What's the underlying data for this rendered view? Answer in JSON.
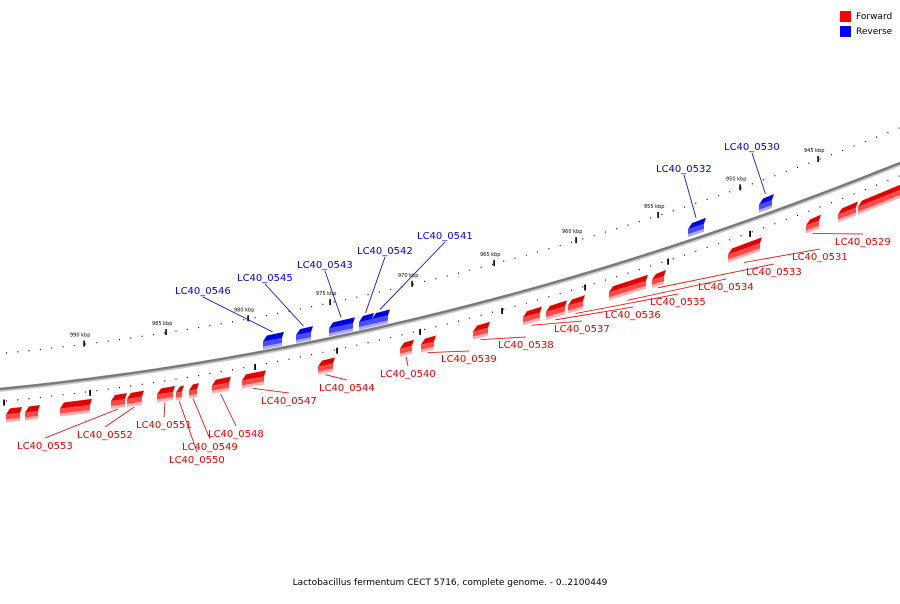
{
  "legend": {
    "forward": {
      "label": "Forward",
      "color": "#ff0000"
    },
    "reverse": {
      "label": "Reverse",
      "color": "#0000ff"
    }
  },
  "caption": "Lactobacillus fermentum CECT 5716, complete genome. - 0..2100449",
  "colors": {
    "forward": "#e00000",
    "forward_light": "#ff4a4a",
    "forward_shadow": "#ffb0b0",
    "reverse": "#0000e0",
    "reverse_light": "#4a4aff",
    "reverse_shadow": "#a8a8ff",
    "backbone": "#7a7a7a",
    "tick": "#000000"
  },
  "scale_labels": [
    "945 kbp",
    "950 kbp",
    "955 kbp",
    "960 kbp",
    "965 kbp",
    "970 kbp",
    "975 kbp",
    "980 kbp",
    "985 kbp",
    "990 kbp"
  ],
  "genes": [
    {
      "label": "LC40_0529",
      "strand": "forward"
    },
    {
      "label": "LC40_0530",
      "strand": "reverse"
    },
    {
      "label": "LC40_0531",
      "strand": "forward"
    },
    {
      "label": "LC40_0532",
      "strand": "reverse"
    },
    {
      "label": "LC40_0533",
      "strand": "forward"
    },
    {
      "label": "LC40_0534",
      "strand": "forward"
    },
    {
      "label": "LC40_0535",
      "strand": "forward"
    },
    {
      "label": "LC40_0536",
      "strand": "forward"
    },
    {
      "label": "LC40_0537",
      "strand": "forward"
    },
    {
      "label": "LC40_0538",
      "strand": "forward"
    },
    {
      "label": "LC40_0539",
      "strand": "forward"
    },
    {
      "label": "LC40_0540",
      "strand": "forward"
    },
    {
      "label": "LC40_0541",
      "strand": "reverse"
    },
    {
      "label": "LC40_0542",
      "strand": "reverse"
    },
    {
      "label": "LC40_0543",
      "strand": "reverse"
    },
    {
      "label": "LC40_0544",
      "strand": "forward"
    },
    {
      "label": "LC40_0545",
      "strand": "reverse"
    },
    {
      "label": "LC40_0546",
      "strand": "reverse"
    },
    {
      "label": "LC40_0547",
      "strand": "forward"
    },
    {
      "label": "LC40_0548",
      "strand": "forward"
    },
    {
      "label": "LC40_0549",
      "strand": "forward"
    },
    {
      "label": "LC40_0550",
      "strand": "forward"
    },
    {
      "label": "LC40_0551",
      "strand": "forward"
    },
    {
      "label": "LC40_0552",
      "strand": "forward"
    },
    {
      "label": "LC40_0553",
      "strand": "forward"
    }
  ]
}
